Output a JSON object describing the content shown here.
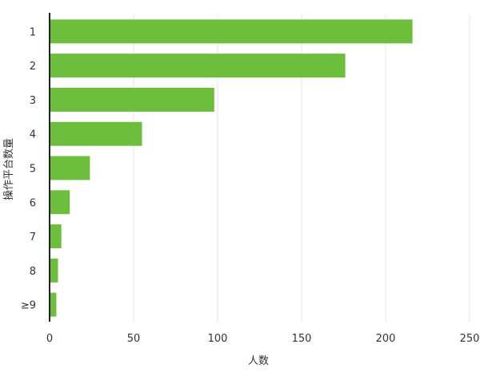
{
  "chart_data": {
    "type": "bar",
    "orientation": "horizontal",
    "categories": [
      "1",
      "2",
      "3",
      "4",
      "5",
      "6",
      "7",
      "8",
      "≥9"
    ],
    "values": [
      216,
      176,
      98,
      55,
      24,
      12,
      7,
      5,
      4
    ],
    "xlabel": "人数",
    "ylabel": "操作平台数量",
    "xlim": [
      0,
      250
    ],
    "xticks": [
      0,
      50,
      100,
      150,
      200,
      250
    ],
    "grid": "vertical",
    "legend": "none",
    "bar_color": "#6cbe3c",
    "axis_color": "#222222",
    "grid_color": "#e6e6e6"
  }
}
